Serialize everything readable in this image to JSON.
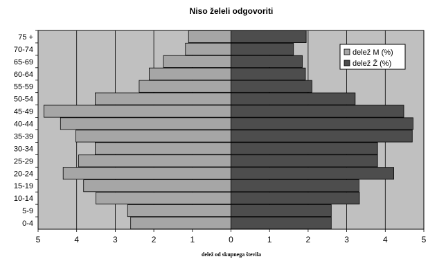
{
  "chart_data": {
    "type": "bar",
    "orientation": "horizontal-population-pyramid",
    "title": "Niso želeli odgovoriti",
    "xlabel": "delež od skupnega števila",
    "ylabel": "",
    "categories": [
      "75 +",
      "70-74",
      "65-69",
      "60-64",
      "55-59",
      "50-54",
      "45-49",
      "40-44",
      "35-39",
      "30-34",
      "25-29",
      "20-24",
      "15-19",
      "10-14",
      "5-9",
      "0-4"
    ],
    "x_ticks": [
      "5",
      "4",
      "3",
      "2",
      "1",
      "0",
      "1",
      "2",
      "3",
      "4",
      "5"
    ],
    "xlim": [
      -5,
      5
    ],
    "grid": true,
    "legend_position": "top-right",
    "series": [
      {
        "name": "delež M (%)",
        "side": "left",
        "color": "#a6a6a6",
        "values": [
          1.1,
          1.18,
          1.75,
          2.12,
          2.38,
          3.52,
          4.85,
          4.42,
          4.02,
          3.52,
          3.95,
          4.35,
          3.82,
          3.5,
          2.68,
          2.6
        ]
      },
      {
        "name": "delež Ž (%)",
        "side": "right",
        "color": "#4d4d4d",
        "values": [
          1.95,
          1.62,
          1.85,
          1.93,
          2.1,
          3.22,
          4.48,
          4.72,
          4.7,
          3.8,
          3.8,
          4.22,
          3.32,
          3.33,
          2.6,
          2.6
        ]
      }
    ]
  }
}
